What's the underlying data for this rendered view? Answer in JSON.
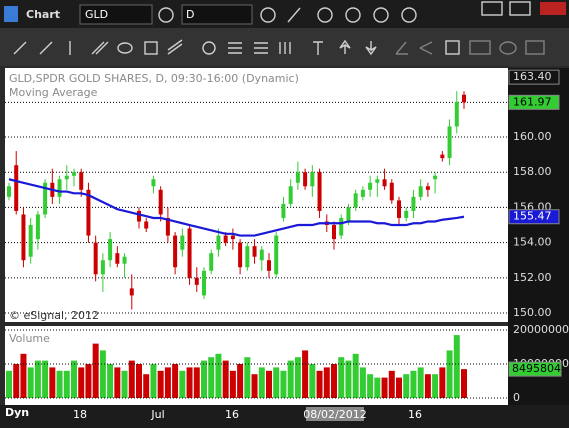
{
  "window": {
    "title": "Chart",
    "symbol": "GLD",
    "interval": "D"
  },
  "chart": {
    "header": "GLD,SPDR GOLD SHARES, D, 09:30-16:00 (Dynamic)",
    "study": "Moving Average",
    "copyright": "© eSignal, 2012",
    "ylim": [
      149.49,
      163.92
    ],
    "yticks": [
      {
        "value": 150,
        "label": "150.00"
      },
      {
        "value": 152,
        "label": "152.00"
      },
      {
        "value": 154,
        "label": "154.00"
      },
      {
        "value": 156,
        "label": "156.00"
      },
      {
        "value": 158,
        "label": "158.00"
      },
      {
        "value": 160,
        "label": "160.00"
      }
    ],
    "high_label": {
      "value": 163.4,
      "label": "163.40"
    },
    "last": {
      "value": 161.97,
      "label": "161.97"
    },
    "ma_last": {
      "value": 155.47,
      "label": "155.47"
    },
    "up_color": "#33cc33",
    "down_color": "#cc0000",
    "ma_color": "#1a1ad6",
    "open": [
      156.6,
      158.4,
      155.6,
      153.2,
      154.2,
      155.6,
      157.4,
      156.6,
      157.6,
      157.8,
      158.0,
      157.0,
      154.0,
      152.2,
      153.0,
      153.4,
      152.8,
      151.4,
      155.8,
      155.2,
      157.2,
      157.0,
      155.4,
      154.4,
      153.6,
      154.8,
      152.0,
      151.0,
      152.4,
      153.6,
      154.4,
      154.4,
      154.0,
      152.6,
      153.8,
      153.0,
      153.0,
      152.2,
      155.4,
      156.2,
      157.4,
      158.0,
      157.2,
      158.0,
      155.2,
      155.0,
      154.4,
      155.2,
      156.0,
      156.6,
      157.0,
      157.4,
      157.6,
      157.4,
      156.4,
      155.4,
      155.8,
      156.6,
      157.2,
      157.6,
      159.0,
      158.8,
      160.6,
      162.4
    ],
    "high": [
      157.4,
      159.2,
      156.0,
      155.4,
      155.8,
      157.6,
      158.2,
      157.8,
      158.4,
      158.2,
      158.2,
      157.4,
      154.4,
      153.4,
      154.6,
      153.8,
      153.4,
      152.2,
      156.0,
      155.4,
      157.8,
      157.2,
      156.0,
      154.6,
      154.8,
      155.0,
      152.6,
      152.6,
      153.6,
      154.8,
      154.6,
      154.8,
      154.2,
      154.0,
      154.2,
      153.8,
      153.4,
      154.6,
      156.6,
      157.6,
      158.6,
      158.2,
      158.4,
      158.2,
      155.6,
      155.2,
      155.6,
      156.2,
      157.0,
      157.2,
      157.8,
      157.8,
      158.2,
      157.6,
      156.6,
      156.0,
      157.0,
      157.6,
      157.4,
      158.0,
      159.2,
      161.0,
      162.6,
      162.6
    ],
    "low": [
      156.4,
      155.6,
      152.6,
      152.8,
      153.6,
      155.4,
      156.2,
      156.2,
      157.0,
      157.2,
      156.6,
      154.0,
      151.8,
      151.2,
      152.6,
      152.6,
      152.0,
      150.2,
      154.8,
      154.6,
      156.8,
      155.2,
      154.0,
      152.2,
      153.2,
      151.6,
      151.2,
      150.8,
      152.2,
      153.2,
      153.8,
      153.6,
      152.2,
      152.4,
      152.8,
      152.4,
      152.0,
      152.0,
      155.2,
      156.0,
      157.0,
      157.0,
      156.6,
      155.4,
      154.6,
      153.6,
      154.2,
      155.0,
      155.8,
      156.4,
      156.6,
      156.6,
      157.0,
      156.2,
      155.0,
      155.2,
      155.4,
      156.4,
      156.6,
      156.8,
      158.6,
      158.4,
      160.2,
      161.6
    ],
    "close": [
      157.2,
      155.8,
      153.0,
      155.0,
      155.6,
      157.4,
      156.6,
      157.6,
      157.8,
      158.0,
      157.0,
      154.4,
      152.2,
      153.0,
      154.2,
      152.8,
      153.2,
      151.0,
      155.2,
      154.8,
      157.6,
      155.6,
      154.4,
      152.6,
      154.4,
      152.0,
      151.6,
      152.4,
      153.4,
      154.4,
      154.0,
      154.2,
      152.6,
      153.8,
      153.2,
      153.6,
      152.4,
      154.4,
      156.2,
      157.2,
      158.0,
      157.2,
      158.0,
      155.8,
      155.0,
      154.2,
      155.4,
      156.0,
      156.8,
      157.0,
      157.4,
      157.6,
      157.2,
      156.4,
      155.4,
      155.8,
      156.6,
      157.2,
      157.0,
      157.8,
      158.8,
      160.6,
      162.0,
      161.97
    ],
    "ma": [
      157.6,
      157.5,
      157.4,
      157.3,
      157.2,
      157.1,
      157.0,
      156.9,
      156.9,
      156.8,
      156.8,
      156.7,
      156.5,
      156.3,
      156.1,
      155.9,
      155.8,
      155.7,
      155.6,
      155.5,
      155.4,
      155.4,
      155.3,
      155.2,
      155.1,
      155.0,
      154.9,
      154.8,
      154.7,
      154.6,
      154.5,
      154.5,
      154.4,
      154.4,
      154.4,
      154.5,
      154.6,
      154.7,
      154.8,
      154.9,
      155.0,
      155.0,
      155.0,
      155.1,
      155.1,
      155.1,
      155.1,
      155.2,
      155.2,
      155.2,
      155.2,
      155.1,
      155.1,
      155.0,
      155.0,
      155.0,
      155.1,
      155.1,
      155.2,
      155.2,
      155.3,
      155.35,
      155.4,
      155.47
    ]
  },
  "volume": {
    "title": "Volume",
    "ylim": [
      -2060000,
      21180000
    ],
    "yticks": [
      0,
      10000000,
      20000000
    ],
    "last": 8495804,
    "values": [
      8000000,
      10000000,
      13000000,
      9000000,
      11000000,
      11000000,
      9000000,
      8000000,
      8000000,
      11000000,
      9000000,
      10000000,
      16000000,
      14000000,
      10000000,
      9000000,
      8000000,
      11000000,
      10000000,
      7000000,
      10000000,
      8000000,
      9000000,
      10000000,
      8000000,
      9000000,
      9000000,
      11000000,
      12000000,
      13000000,
      11000000,
      8000000,
      10000000,
      12000000,
      7000000,
      9000000,
      8000000,
      9000000,
      8000000,
      11000000,
      12000000,
      14000000,
      10000000,
      8000000,
      9000000,
      10000000,
      12000000,
      11000000,
      13000000,
      9000000,
      7000000,
      6000000,
      6000000,
      8000000,
      6000000,
      7000000,
      8000000,
      9000000,
      7000000,
      7000000,
      9000000,
      14000000,
      18500000,
      8495804
    ]
  },
  "xaxis": {
    "mode": "Dyn",
    "labels": [
      "18",
      "Jul",
      "16",
      "08/02/2012",
      "16"
    ]
  }
}
